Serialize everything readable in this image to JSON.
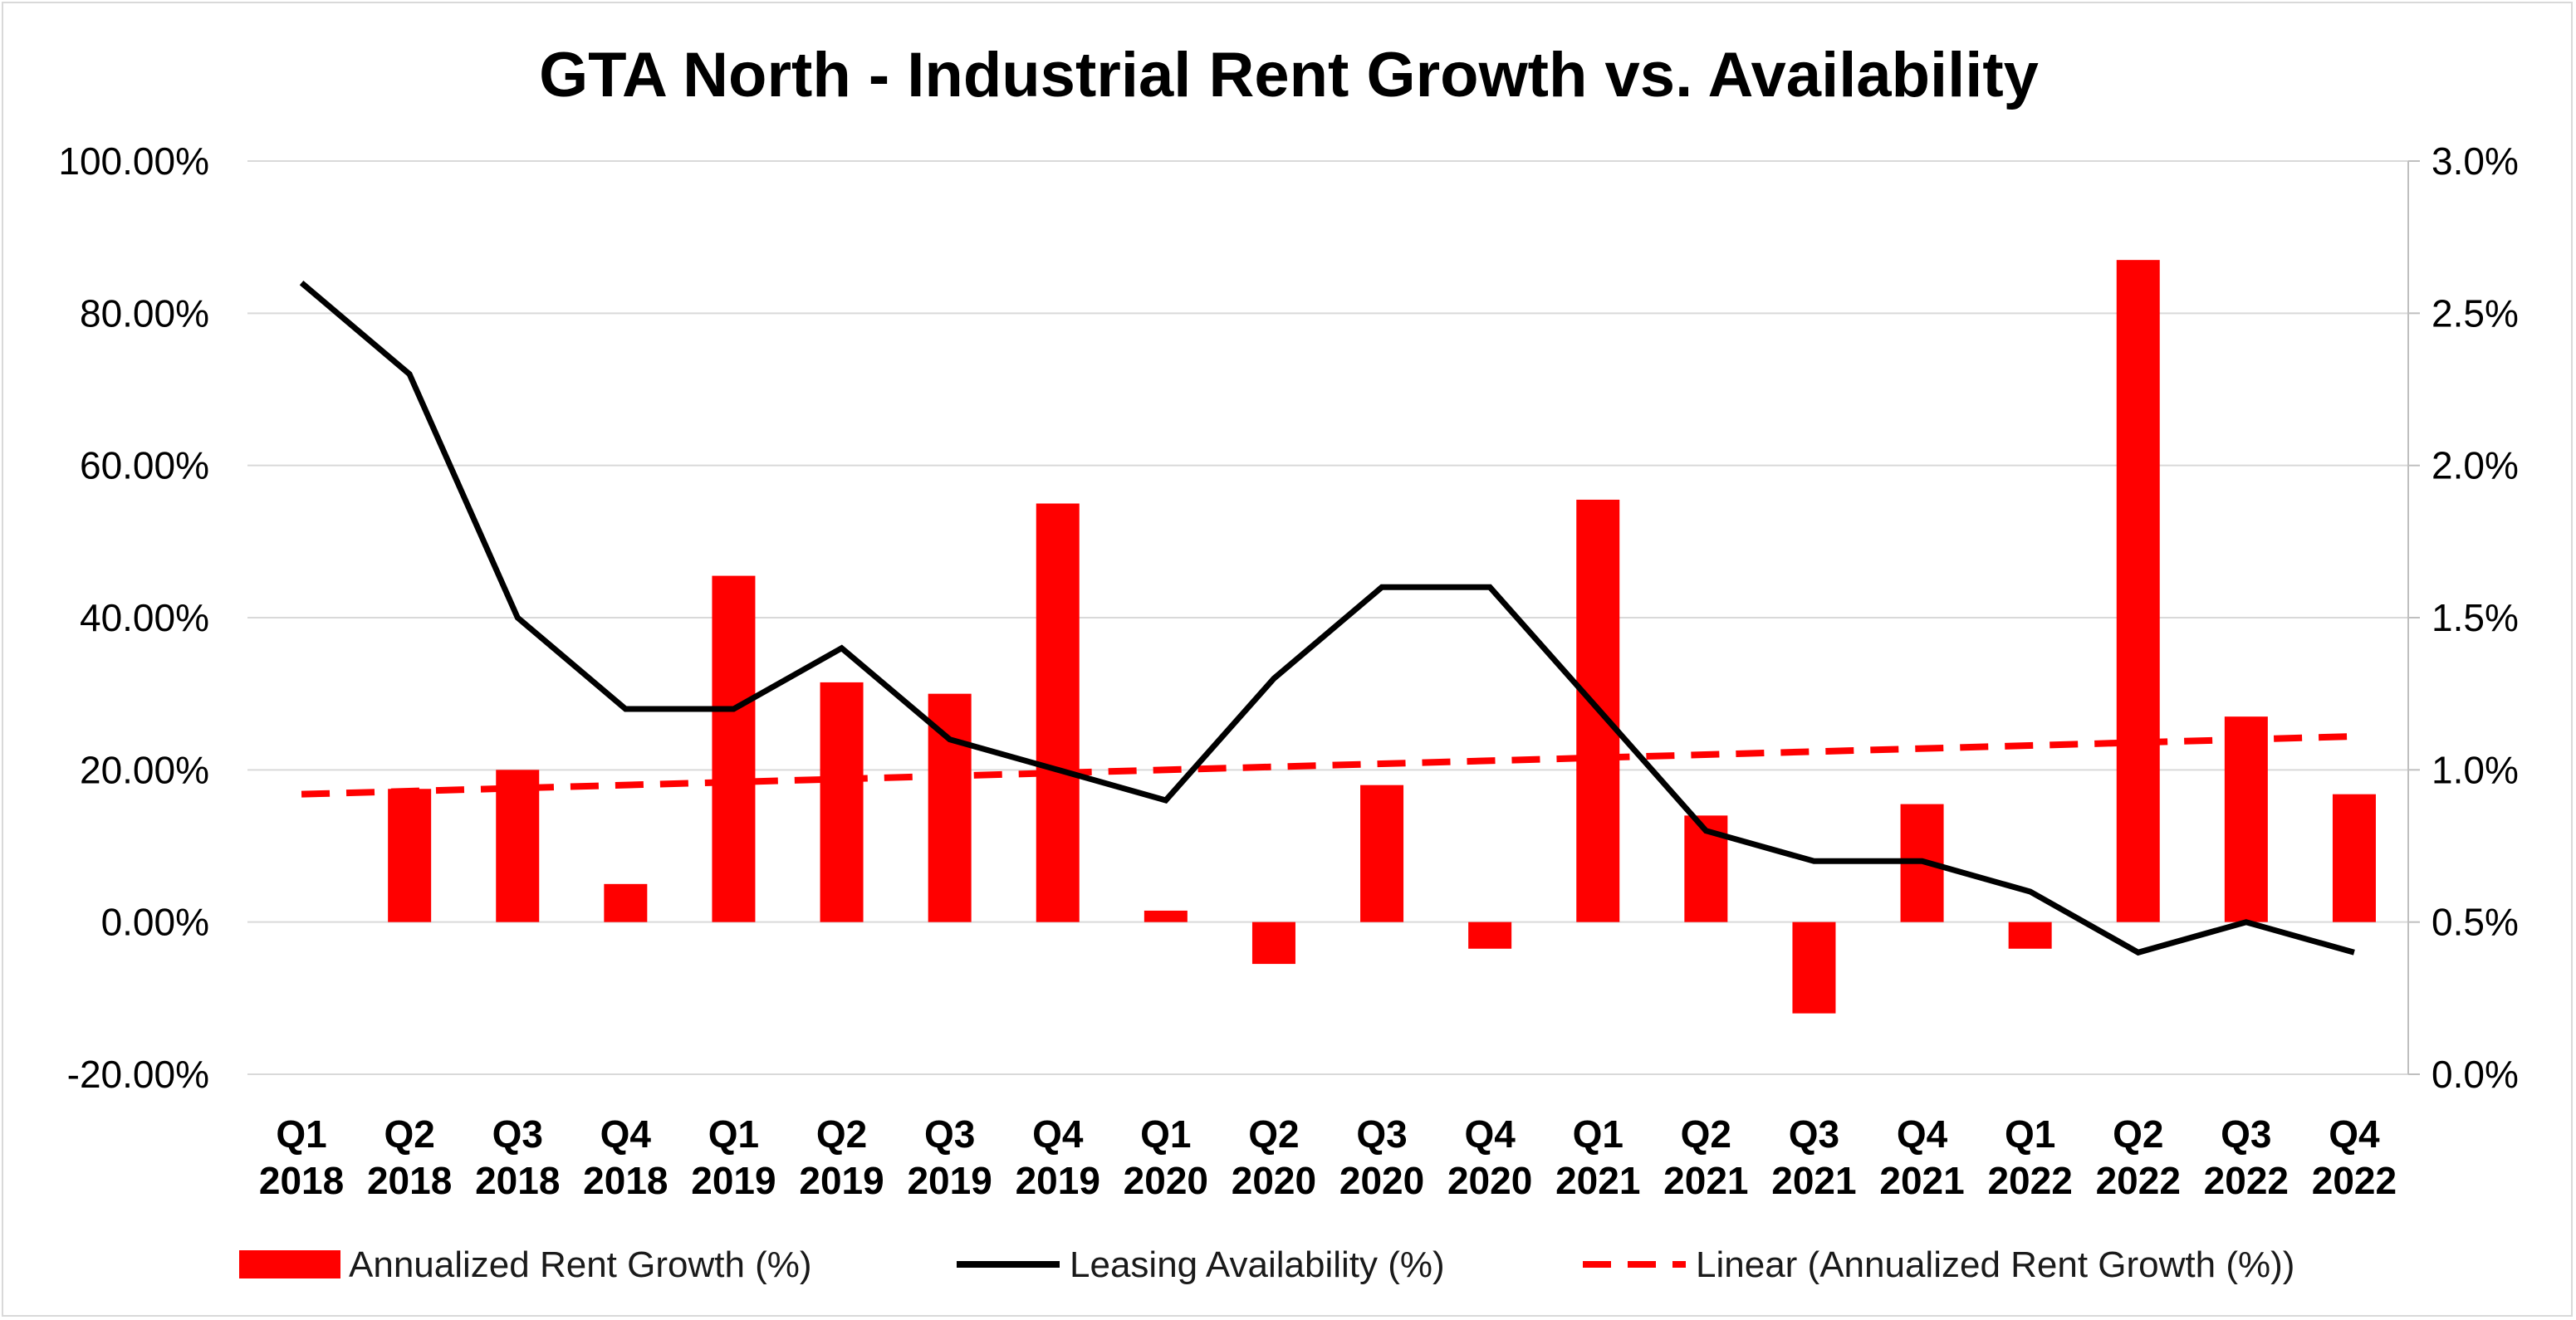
{
  "chart_data": {
    "type": "bar",
    "title": "GTA North - Industrial Rent Growth vs. Availability",
    "categories": [
      [
        "Q1",
        "2018"
      ],
      [
        "Q2",
        "2018"
      ],
      [
        "Q3",
        "2018"
      ],
      [
        "Q4",
        "2018"
      ],
      [
        "Q1",
        "2019"
      ],
      [
        "Q2",
        "2019"
      ],
      [
        "Q3",
        "2019"
      ],
      [
        "Q4",
        "2019"
      ],
      [
        "Q1",
        "2020"
      ],
      [
        "Q2",
        "2020"
      ],
      [
        "Q3",
        "2020"
      ],
      [
        "Q4",
        "2020"
      ],
      [
        "Q1",
        "2021"
      ],
      [
        "Q2",
        "2021"
      ],
      [
        "Q3",
        "2021"
      ],
      [
        "Q4",
        "2021"
      ],
      [
        "Q1",
        "2022"
      ],
      [
        "Q2",
        "2022"
      ],
      [
        "Q3",
        "2022"
      ],
      [
        "Q4",
        "2022"
      ]
    ],
    "series": [
      {
        "name": "Annualized Rent Growth (%)",
        "type": "bar",
        "axis": "left",
        "color": "#ff0000",
        "values": [
          0,
          17.5,
          20.0,
          5.0,
          45.5,
          31.5,
          30.0,
          55.0,
          1.5,
          -5.5,
          18.0,
          -3.5,
          55.5,
          14.0,
          -12.0,
          15.5,
          -3.5,
          87.0,
          27.0,
          16.8
        ]
      },
      {
        "name": "Leasing Availability (%)",
        "type": "line",
        "axis": "right",
        "color": "#000000",
        "values": [
          2.6,
          2.3,
          1.5,
          1.2,
          1.2,
          1.4,
          1.1,
          1.0,
          0.9,
          1.3,
          1.6,
          1.6,
          1.2,
          0.8,
          0.7,
          0.7,
          0.6,
          0.4,
          0.5,
          0.4
        ]
      },
      {
        "name": "Linear (Annualized Rent Growth (%))",
        "type": "trendline",
        "axis": "left",
        "color": "#ff0000",
        "dashed": true,
        "start": 16.8,
        "end": 24.4
      }
    ],
    "left_axis": {
      "min": -20,
      "max": 100,
      "step": 20,
      "tick_labels": [
        "-20.00%",
        "0.00%",
        "20.00%",
        "40.00%",
        "60.00%",
        "80.00%",
        "100.00%"
      ]
    },
    "right_axis": {
      "min": 0,
      "max": 3.0,
      "step": 0.5,
      "tick_labels": [
        "0.0%",
        "0.5%",
        "1.0%",
        "1.5%",
        "2.0%",
        "2.5%",
        "3.0%"
      ]
    },
    "grid": true,
    "legend": {
      "position": "bottom",
      "items": [
        {
          "label": "Annualized Rent Growth (%)",
          "kind": "bar"
        },
        {
          "label": "Leasing Availability (%)",
          "kind": "line"
        },
        {
          "label": "Linear (Annualized Rent Growth (%))",
          "kind": "dashed"
        }
      ]
    }
  }
}
